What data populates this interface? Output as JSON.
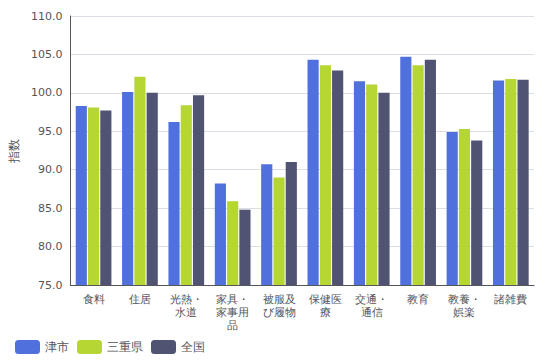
{
  "chart_data": {
    "type": "bar",
    "categories": [
      "食料",
      "住居",
      "光熱・\n水道",
      "家具・\n家事用\n品",
      "被服及\nび履物",
      "保健医\n療",
      "交通・\n通信",
      "教育",
      "教養・\n娯楽",
      "諸雑費"
    ],
    "series": [
      {
        "name": "津市",
        "values": [
          98.3,
          100.1,
          96.2,
          88.2,
          90.7,
          104.3,
          101.5,
          104.7,
          94.9,
          101.6
        ]
      },
      {
        "name": "三重県",
        "values": [
          98.1,
          102.1,
          98.4,
          85.9,
          89.0,
          103.6,
          101.1,
          103.6,
          95.3,
          101.8
        ]
      },
      {
        "name": "全国",
        "values": [
          97.7,
          100.0,
          99.7,
          84.8,
          91.0,
          102.9,
          100.0,
          104.3,
          93.8,
          101.7
        ]
      }
    ],
    "y_label": "指数",
    "ylim": [
      75.0,
      110.0
    ],
    "yticks": [
      {
        "value": 75,
        "label": "75.0"
      },
      {
        "value": 80,
        "label": "80.0"
      },
      {
        "value": 85,
        "label": "85.0"
      },
      {
        "value": 90,
        "label": "90.0"
      },
      {
        "value": 95,
        "label": "95.0"
      },
      {
        "value": 100,
        "label": "100.0"
      },
      {
        "value": 105,
        "label": "105.0"
      },
      {
        "value": 110,
        "label": "110.0"
      }
    ],
    "grid": true,
    "legend": "lower left"
  }
}
